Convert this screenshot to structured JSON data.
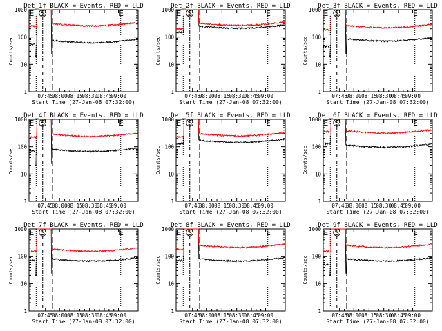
{
  "chart_data": [
    {
      "type": "line",
      "title": "Det_1f BLACK = Events, RED = LLD",
      "xlabel": "Start Time (27-Jan-08 07:32:00)",
      "ylabel": "Counts/sec",
      "yscale": "log",
      "ylim": [
        1,
        1000
      ],
      "xlim": [
        0,
        100
      ],
      "x_ticks": [
        "07:45",
        "08:00",
        "08:15",
        "08:30",
        "08:45",
        "09:00"
      ],
      "y_ticks": [
        "1",
        "10",
        "100",
        "1000"
      ],
      "markers": [
        "E",
        "S",
        "E"
      ],
      "series": [
        {
          "name": "Events",
          "color": "#000000",
          "level_before": 55,
          "level_after": 65,
          "drop": 20
        },
        {
          "name": "LLD",
          "color": "#ff0000",
          "level_before": 250,
          "level_after": 270,
          "drop": 0
        }
      ]
    },
    {
      "type": "line",
      "title": "Det_2f BLACK = Events, RED = LLD",
      "xlabel": "Start Time (27-Jan-08 07:32:00)",
      "ylabel": "Counts/sec",
      "yscale": "log",
      "ylim": [
        1,
        1000
      ],
      "xlim": [
        0,
        100
      ],
      "x_ticks": [
        "07:45",
        "08:00",
        "08:15",
        "08:30",
        "08:45",
        "09:00"
      ],
      "y_ticks": [
        "1",
        "10",
        "100",
        "1000"
      ],
      "markers": [
        "E",
        "S",
        "E"
      ],
      "series": [
        {
          "name": "Events",
          "color": "#000000",
          "level_before": 150,
          "level_after": 220,
          "drop": 0
        },
        {
          "name": "LLD",
          "color": "#ff0000",
          "level_before": 200,
          "level_after": 280,
          "drop": 0
        }
      ]
    },
    {
      "type": "line",
      "title": "Det_3f BLACK = Events, RED = LLD",
      "xlabel": "Start Time (27-Jan-08 07:32:00)",
      "ylabel": "Counts/sec",
      "yscale": "log",
      "ylim": [
        1,
        1000
      ],
      "xlim": [
        0,
        100
      ],
      "x_ticks": [
        "07:45",
        "08:00",
        "08:15",
        "08:30",
        "08:45",
        "09:00"
      ],
      "y_ticks": [
        "1",
        "10",
        "100",
        "1000"
      ],
      "markers": [
        "E",
        "S",
        "E"
      ],
      "series": [
        {
          "name": "Events",
          "color": "#000000",
          "level_before": 45,
          "level_after": 75,
          "drop": 20
        },
        {
          "name": "LLD",
          "color": "#ff0000",
          "level_before": 180,
          "level_after": 230,
          "drop": 0
        }
      ]
    },
    {
      "type": "line",
      "title": "Det_4f BLACK = Events, RED = LLD",
      "xlabel": "Start Time (27-Jan-08 07:32:00)",
      "ylabel": "Counts/sec",
      "yscale": "log",
      "ylim": [
        1,
        1000
      ],
      "xlim": [
        0,
        100
      ],
      "x_ticks": [
        "07:45",
        "08:00",
        "08:15",
        "08:30",
        "08:45",
        "09:00"
      ],
      "y_ticks": [
        "1",
        "10",
        "100",
        "1000"
      ],
      "markers": [
        "E",
        "S",
        "E"
      ],
      "series": [
        {
          "name": "Events",
          "color": "#000000",
          "level_before": 70,
          "level_after": 70,
          "drop": 20
        },
        {
          "name": "LLD",
          "color": "#ff0000",
          "level_before": 220,
          "level_after": 250,
          "drop": 0
        }
      ]
    },
    {
      "type": "line",
      "title": "Det_5f BLACK = Events, RED = LLD",
      "xlabel": "Start Time (27-Jan-08 07:32:00)",
      "ylabel": "Counts/sec",
      "yscale": "log",
      "ylim": [
        1,
        1000
      ],
      "xlim": [
        0,
        100
      ],
      "x_ticks": [
        "07:45",
        "08:00",
        "08:15",
        "08:30",
        "08:45",
        "09:00"
      ],
      "y_ticks": [
        "1",
        "10",
        "100",
        "1000"
      ],
      "markers": [
        "E",
        "S",
        "E"
      ],
      "series": [
        {
          "name": "Events",
          "color": "#000000",
          "level_before": 130,
          "level_after": 150,
          "drop": 0
        },
        {
          "name": "LLD",
          "color": "#ff0000",
          "level_before": 230,
          "level_after": 260,
          "drop": 0
        }
      ]
    },
    {
      "type": "line",
      "title": "Det_6f BLACK = Events, RED = LLD",
      "xlabel": "Start Time (27-Jan-08 07:32:00)",
      "ylabel": "Counts/sec",
      "yscale": "log",
      "ylim": [
        1,
        1000
      ],
      "xlim": [
        0,
        100
      ],
      "x_ticks": [
        "07:45",
        "08:00",
        "08:15",
        "08:30",
        "08:45",
        "09:00"
      ],
      "y_ticks": [
        "1",
        "10",
        "100",
        "1000"
      ],
      "markers": [
        "E",
        "S",
        "E"
      ],
      "series": [
        {
          "name": "Events",
          "color": "#000000",
          "level_before": 130,
          "level_after": 100,
          "drop": 0
        },
        {
          "name": "LLD",
          "color": "#ff0000",
          "level_before": 350,
          "level_after": 330,
          "drop": 0
        }
      ]
    },
    {
      "type": "line",
      "title": "Det_7f BLACK = Events, RED = LLD",
      "xlabel": "Start Time (27-Jan-08 07:32:00)",
      "ylabel": "Counts/sec",
      "yscale": "log",
      "ylim": [
        1,
        1000
      ],
      "xlim": [
        0,
        100
      ],
      "x_ticks": [
        "07:45",
        "08:00",
        "08:15",
        "08:30",
        "08:45",
        "09:00"
      ],
      "y_ticks": [
        "1",
        "10",
        "100",
        "1000"
      ],
      "markers": [
        "E",
        "S",
        "E"
      ],
      "series": [
        {
          "name": "Events",
          "color": "#000000",
          "level_before": 70,
          "level_after": 70,
          "drop": 20
        },
        {
          "name": "LLD",
          "color": "#ff0000",
          "level_before": 150,
          "level_after": 160,
          "drop": 0
        }
      ]
    },
    {
      "type": "line",
      "title": "Det_8f BLACK = Events, RED = LLD",
      "xlabel": "Start Time (27-Jan-08 07:32:00)",
      "ylabel": "Counts/sec",
      "yscale": "log",
      "ylim": [
        1,
        1000
      ],
      "xlim": [
        0,
        100
      ],
      "x_ticks": [
        "07:45",
        "08:00",
        "08:15",
        "08:30",
        "08:45",
        "09:00"
      ],
      "y_ticks": [
        "1",
        "10",
        "100",
        "1000"
      ],
      "markers": [
        "E",
        "S",
        "E"
      ],
      "series": [
        {
          "name": "Events",
          "color": "#000000",
          "level_before": 70,
          "level_after": 70,
          "drop": 0
        },
        {
          "name": "LLD",
          "color": "#ff0000",
          "level_before": 180,
          "level_after": 220,
          "drop": 0
        }
      ]
    },
    {
      "type": "line",
      "title": "Det_9f BLACK = Events, RED = LLD",
      "xlabel": "Start Time (27-Jan-08 07:32:00)",
      "ylabel": "Counts/sec",
      "yscale": "log",
      "ylim": [
        1,
        1000
      ],
      "xlim": [
        0,
        100
      ],
      "x_ticks": [
        "07:45",
        "08:00",
        "08:15",
        "08:30",
        "08:45",
        "09:00"
      ],
      "y_ticks": [
        "1",
        "10",
        "100",
        "1000"
      ],
      "markers": [
        "E",
        "S",
        "E"
      ],
      "series": [
        {
          "name": "Events",
          "color": "#000000",
          "level_before": 50,
          "level_after": 70,
          "drop": 20
        },
        {
          "name": "LLD",
          "color": "#ff0000",
          "level_before": 150,
          "level_after": 220,
          "drop": 0
        }
      ]
    }
  ]
}
